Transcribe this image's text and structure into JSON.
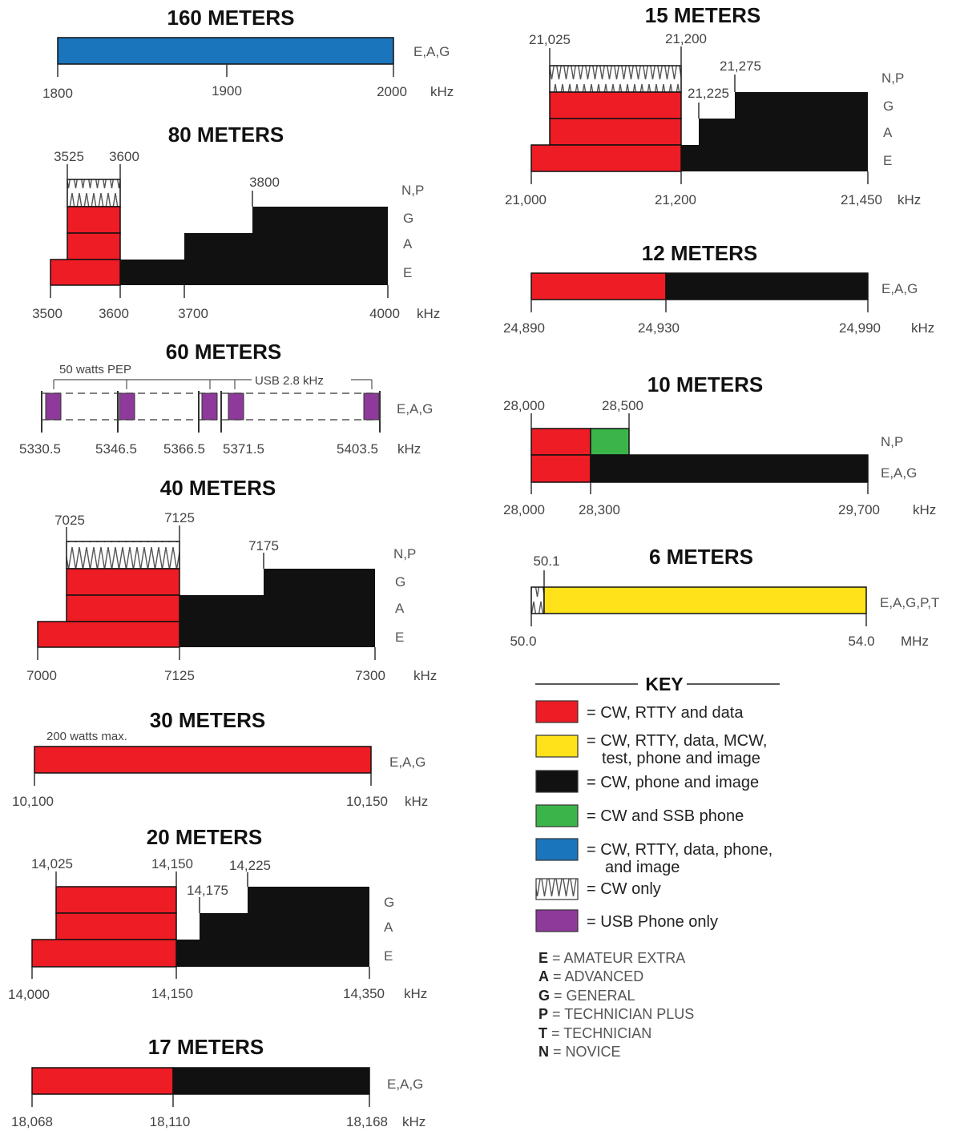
{
  "colors": {
    "cw_rtty_data": "#ee1c24",
    "all_modes_6m": "#ffe21a",
    "cw_phone_image": "#111111",
    "cw_ssb_phone": "#3bb54a",
    "cw_rtty_data_phone_image": "#1b75bc",
    "usb_phone_only": "#8e3a9a",
    "cw_only_hatch": "#555555"
  },
  "bands": {
    "b160": {
      "title": "160 METERS",
      "ticks": [
        "1800",
        "1900",
        "2000"
      ],
      "unit": "kHz",
      "classes": "E,A,G"
    },
    "b80": {
      "title": "80 METERS",
      "top_labels": [
        "3525",
        "3600",
        "3800"
      ],
      "ticks": [
        "3500",
        "3600",
        "3700",
        "4000"
      ],
      "unit": "kHz",
      "levels": [
        "N,P",
        "G",
        "A",
        "E"
      ]
    },
    "b60": {
      "title": "60 METERS",
      "note_power": "50 watts PEP",
      "note_bw": "USB 2.8 kHz",
      "ticks": [
        "5330.5",
        "5346.5",
        "5366.5",
        "5371.5",
        "5403.5"
      ],
      "unit": "kHz",
      "classes": "E,A,G"
    },
    "b40": {
      "title": "40 METERS",
      "top_labels": [
        "7025",
        "7125",
        "7175"
      ],
      "ticks": [
        "7000",
        "7125",
        "7300"
      ],
      "unit": "kHz",
      "levels": [
        "N,P",
        "G",
        "A",
        "E"
      ]
    },
    "b30": {
      "title": "30 METERS",
      "note": "200 watts max.",
      "ticks": [
        "10,100",
        "10,150"
      ],
      "unit": "kHz",
      "classes": "E,A,G"
    },
    "b20": {
      "title": "20 METERS",
      "top_labels": [
        "14,025",
        "14,150",
        "14,175",
        "14,225"
      ],
      "ticks": [
        "14,000",
        "14,150",
        "14,350"
      ],
      "unit": "kHz",
      "levels": [
        "G",
        "A",
        "E"
      ]
    },
    "b17": {
      "title": "17 METERS",
      "ticks": [
        "18,068",
        "18,110",
        "18,168"
      ],
      "unit": "kHz",
      "classes": "E,A,G"
    },
    "b15": {
      "title": "15 METERS",
      "top_labels": [
        "21,025",
        "21,200",
        "21,275",
        "21,225"
      ],
      "ticks": [
        "21,000",
        "21,200",
        "21,450"
      ],
      "unit": "kHz",
      "levels": [
        "N,P",
        "G",
        "A",
        "E"
      ]
    },
    "b12": {
      "title": "12 METERS",
      "ticks": [
        "24,890",
        "24,930",
        "24,990"
      ],
      "unit": "kHz",
      "classes": "E,A,G"
    },
    "b10": {
      "title": "10 METERS",
      "top_labels": [
        "28,000",
        "28,500"
      ],
      "ticks": [
        "28,000",
        "28,300",
        "29,700"
      ],
      "unit": "kHz",
      "levels": [
        "N,P",
        "E,A,G"
      ]
    },
    "b6": {
      "title": "6 METERS",
      "top_labels": [
        "50.1"
      ],
      "ticks": [
        "50.0",
        "54.0"
      ],
      "unit": "MHz",
      "classes": "E,A,G,P,T"
    }
  },
  "key": {
    "title": "KEY",
    "items": [
      {
        "swatch": "cw_rtty_data",
        "lines": [
          "= CW, RTTY and data"
        ]
      },
      {
        "swatch": "all_modes_6m",
        "lines": [
          "= CW, RTTY, data, MCW,",
          "test, phone and image"
        ]
      },
      {
        "swatch": "cw_phone_image",
        "lines": [
          "= CW, phone and image"
        ]
      },
      {
        "swatch": "cw_ssb_phone",
        "lines": [
          "= CW and SSB phone"
        ]
      },
      {
        "swatch": "cw_rtty_data_phone_image",
        "lines": [
          "= CW, RTTY, data, phone,",
          "and image"
        ]
      },
      {
        "swatch": "cw_only_hatch",
        "lines": [
          "= CW only"
        ]
      },
      {
        "swatch": "usb_phone_only",
        "lines": [
          "= USB Phone only"
        ]
      }
    ],
    "abbreviations": [
      {
        "letter": "E",
        "text": " = AMATEUR EXTRA"
      },
      {
        "letter": "A",
        "text": " = ADVANCED"
      },
      {
        "letter": "G",
        "text": " = GENERAL"
      },
      {
        "letter": "P",
        "text": " = TECHNICIAN PLUS"
      },
      {
        "letter": "T",
        "text": " = TECHNICIAN"
      },
      {
        "letter": "N",
        "text": " = NOVICE"
      }
    ]
  }
}
